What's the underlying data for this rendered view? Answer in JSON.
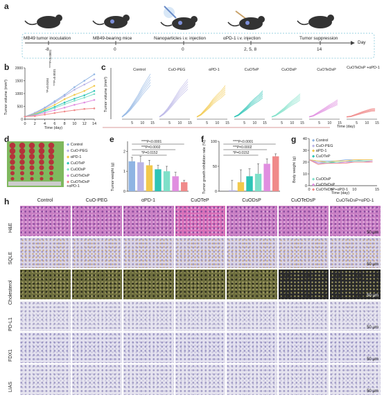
{
  "panel_labels": {
    "a": "a",
    "b": "b",
    "c": "c",
    "d": "d",
    "e": "e",
    "f": "f",
    "g": "g",
    "h": "h"
  },
  "timeline": {
    "events": [
      {
        "label": "MB49 tumor inoculation",
        "day": "-8"
      },
      {
        "label": "MB49-bearing mice",
        "day": "0"
      },
      {
        "label": "Nanoparticles  i.v. injection",
        "day": "0"
      },
      {
        "label": "αPD-1  i.v. injection",
        "day": "2, 5, 8"
      },
      {
        "label": "Tumor suppression",
        "day": "14"
      }
    ],
    "axis_label": "Day"
  },
  "groups": [
    "Control",
    "CuO-PEG",
    "αPD-1",
    "CuOTeP",
    "CuODsP",
    "CuOTeDsP",
    "CuOTeDsP +αPD-1"
  ],
  "colors": [
    "#8fb4e3",
    "#b9b4e6",
    "#f2c94c",
    "#2ec4b6",
    "#7fe0c9",
    "#e08ee0",
    "#f08a8a"
  ],
  "panel_b": {
    "ylabel": "Tumor volume (mm³)",
    "xlabel": "Time (day)",
    "xticks": [
      "0",
      "2",
      "4",
      "6",
      "8",
      "10",
      "12",
      "14"
    ],
    "yticks": [
      "0",
      "500",
      "1000",
      "1500",
      "2000"
    ],
    "stats": [
      "****P<0.0001",
      "***P=0.0031",
      "*P=0.0184"
    ]
  },
  "panel_c": {
    "ylabel": "Tumor volume (mm³)",
    "xlabel": "Time (day)",
    "xticks": [
      "5",
      "10",
      "15"
    ]
  },
  "panel_d": {
    "legend": [
      "Control",
      "CuO-PEG",
      "αPD-1",
      "CuOTeP",
      "CuODsP",
      "CuOTeDsP",
      "CuOTeDsP +αPD-1"
    ]
  },
  "panel_e": {
    "ylabel": "Tumor weight (g)",
    "yticks": [
      "0",
      "1",
      "2"
    ],
    "stats": [
      "****P<0.0001",
      "***P=0.0002",
      "*P=0.0152"
    ]
  },
  "panel_f": {
    "ylabel": "Tumor growth inhibition rate (%)",
    "yticks": [
      "0",
      "50",
      "100"
    ],
    "stats": [
      "****P<0.0001",
      "***P=0.0002",
      "*P=0.0152"
    ]
  },
  "panel_g": {
    "ylabel": "Body weight (g)",
    "xlabel": "Time (day)",
    "xticks": [
      "0",
      "5",
      "10",
      "15"
    ],
    "yticks": [
      "0",
      "10",
      "20",
      "30",
      "40"
    ],
    "legend": [
      "Control",
      "CuO-PEG",
      "αPD-1",
      "CuOTeP",
      "CuODsP",
      "CuOTeDsP",
      "CuOTeDsP+αPD-1"
    ]
  },
  "panel_h": {
    "columns": [
      "Control",
      "CuO-PEG",
      "αPD-1",
      "CuOTeP",
      "CuODsP",
      "CuOTeDsP",
      "CuOTeDsP+αPD-1"
    ],
    "rows": [
      "H&E",
      "SQLE",
      "Cholesterol",
      "PD-L1",
      "FDX1",
      "LIAS"
    ],
    "scale": "50 μm"
  },
  "chart_data": [
    {
      "type": "line",
      "id": "b",
      "x": [
        0,
        2,
        4,
        6,
        8,
        10,
        12,
        14
      ],
      "series": [
        {
          "name": "Control",
          "values": [
            100,
            250,
            450,
            700,
            950,
            1250,
            1500,
            1750
          ]
        },
        {
          "name": "CuO-PEG",
          "values": [
            100,
            230,
            420,
            650,
            900,
            1150,
            1350,
            1550
          ]
        },
        {
          "name": "αPD-1",
          "values": [
            100,
            200,
            380,
            560,
            780,
            950,
            1100,
            1300
          ]
        },
        {
          "name": "CuOTeP",
          "values": [
            100,
            180,
            330,
            480,
            650,
            800,
            930,
            1100
          ]
        },
        {
          "name": "CuODsP",
          "values": [
            100,
            170,
            300,
            430,
            580,
            720,
            840,
            980
          ]
        },
        {
          "name": "CuOTeDsP",
          "values": [
            100,
            150,
            250,
            350,
            450,
            560,
            650,
            750
          ]
        },
        {
          "name": "CuOTeDsP +αPD-1",
          "values": [
            100,
            120,
            180,
            240,
            300,
            350,
            400,
            420
          ]
        }
      ],
      "xlabel": "Time (day)",
      "ylabel": "Tumor volume (mm³)",
      "ylim": [
        0,
        2000
      ]
    },
    {
      "type": "bar",
      "id": "e",
      "categories": [
        "Control",
        "CuO-PEG",
        "αPD-1",
        "CuOTeP",
        "CuODsP",
        "CuOTeDsP",
        "CuOTeDsP +αPD-1"
      ],
      "values": [
        1.5,
        1.45,
        1.3,
        1.1,
        1.0,
        0.75,
        0.45
      ],
      "errors": [
        0.2,
        0.3,
        0.25,
        0.2,
        0.25,
        0.2,
        0.1
      ],
      "ylabel": "Tumor weight (g)",
      "ylim": [
        0,
        2.5
      ]
    },
    {
      "type": "bar",
      "id": "f",
      "categories": [
        "Control",
        "CuO-PEG",
        "αPD-1",
        "CuOTeP",
        "CuODsP",
        "CuOTeDsP",
        "CuOTeDsP +αPD-1"
      ],
      "values": [
        0,
        2,
        18,
        30,
        35,
        55,
        70
      ],
      "errors": [
        0,
        20,
        25,
        15,
        20,
        10,
        5
      ],
      "ylabel": "Tumor growth inhibition rate (%)",
      "ylim": [
        0,
        100
      ]
    },
    {
      "type": "line",
      "id": "g",
      "x": [
        0,
        2,
        4,
        6,
        8,
        10,
        12,
        14
      ],
      "series": [
        {
          "name": "Control",
          "values": [
            22,
            21,
            21,
            21,
            22,
            22,
            22,
            22
          ]
        },
        {
          "name": "CuO-PEG",
          "values": [
            22,
            20,
            20,
            21,
            21,
            21,
            22,
            22
          ]
        },
        {
          "name": "αPD-1",
          "values": [
            22,
            21,
            20,
            21,
            21,
            22,
            22,
            22
          ]
        },
        {
          "name": "CuOTeP",
          "values": [
            22,
            19,
            19,
            20,
            20,
            21,
            21,
            21
          ]
        },
        {
          "name": "CuODsP",
          "values": [
            22,
            19,
            20,
            20,
            20,
            21,
            21,
            21
          ]
        },
        {
          "name": "CuOTeDsP",
          "values": [
            22,
            19,
            19,
            19,
            20,
            20,
            20,
            21
          ]
        },
        {
          "name": "CuOTeDsP+αPD-1",
          "values": [
            22,
            18,
            19,
            19,
            19,
            20,
            20,
            20
          ]
        }
      ],
      "xlabel": "Time (day)",
      "ylabel": "Body weight (g)",
      "ylim": [
        0,
        40
      ]
    }
  ]
}
